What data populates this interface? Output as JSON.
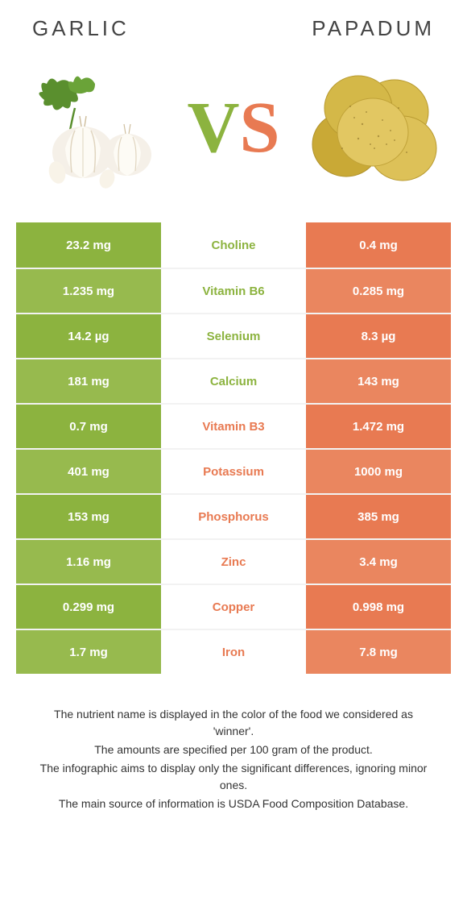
{
  "food_left": {
    "name": "GARLIC"
  },
  "food_right": {
    "name": "PAPADUM"
  },
  "vs": {
    "v": "V",
    "s": "S"
  },
  "colors": {
    "green": "#8cb33f",
    "green_alt": "#97ba4e",
    "orange": "#e87a52",
    "orange_alt": "#ea865f",
    "sep": "#f2f2f2"
  },
  "rows": [
    {
      "left": "23.2 mg",
      "mid": "Choline",
      "right": "0.4 mg",
      "winner": "left"
    },
    {
      "left": "1.235 mg",
      "mid": "Vitamin B6",
      "right": "0.285 mg",
      "winner": "left"
    },
    {
      "left": "14.2 µg",
      "mid": "Selenium",
      "right": "8.3 µg",
      "winner": "left"
    },
    {
      "left": "181 mg",
      "mid": "Calcium",
      "right": "143 mg",
      "winner": "left"
    },
    {
      "left": "0.7 mg",
      "mid": "Vitamin B3",
      "right": "1.472 mg",
      "winner": "right"
    },
    {
      "left": "401 mg",
      "mid": "Potassium",
      "right": "1000 mg",
      "winner": "right"
    },
    {
      "left": "153 mg",
      "mid": "Phosphorus",
      "right": "385 mg",
      "winner": "right"
    },
    {
      "left": "1.16 mg",
      "mid": "Zinc",
      "right": "3.4 mg",
      "winner": "right"
    },
    {
      "left": "0.299 mg",
      "mid": "Copper",
      "right": "0.998 mg",
      "winner": "right"
    },
    {
      "left": "1.7 mg",
      "mid": "Iron",
      "right": "7.8 mg",
      "winner": "right"
    }
  ],
  "footer": {
    "line1": "The nutrient name is displayed in the color of the food we considered as 'winner'.",
    "line2": "The amounts are specified per 100 gram of the product.",
    "line3": "The infographic aims to display only the significant differences, ignoring minor ones.",
    "line4": "The main source of information is USDA Food Composition Database."
  }
}
